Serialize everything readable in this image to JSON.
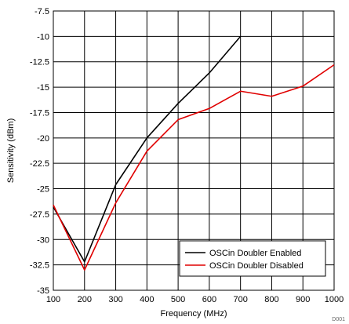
{
  "chart_data": {
    "type": "line",
    "title": "",
    "xlabel": "Frequency (MHz)",
    "ylabel": "Sensitivity (dBm)",
    "xlim": [
      100,
      1000
    ],
    "ylim": [
      -35,
      -7.5
    ],
    "x_ticks": [
      100,
      200,
      300,
      400,
      500,
      600,
      700,
      800,
      900,
      1000
    ],
    "y_ticks": [
      -7.5,
      -10,
      -12.5,
      -15,
      -17.5,
      -20,
      -22.5,
      -25,
      -27.5,
      -30,
      -32.5,
      -35
    ],
    "grid": true,
    "legend_position": "bottom-right",
    "series": [
      {
        "name": "OSCin Doubler Enabled",
        "color": "#000000",
        "x": [
          100,
          200,
          300,
          400,
          500,
          600,
          700
        ],
        "y": [
          -26.8,
          -32.2,
          -24.6,
          -20.0,
          -16.6,
          -13.6,
          -10.0
        ]
      },
      {
        "name": "OSCin Doubler Disabled",
        "color": "#e00000",
        "x": [
          100,
          200,
          300,
          400,
          500,
          600,
          700,
          800,
          900,
          1000
        ],
        "y": [
          -26.6,
          -33.0,
          -26.4,
          -21.3,
          -18.2,
          -17.1,
          -15.4,
          -15.9,
          -14.9,
          -12.8
        ]
      }
    ]
  },
  "figure_code": "D001"
}
